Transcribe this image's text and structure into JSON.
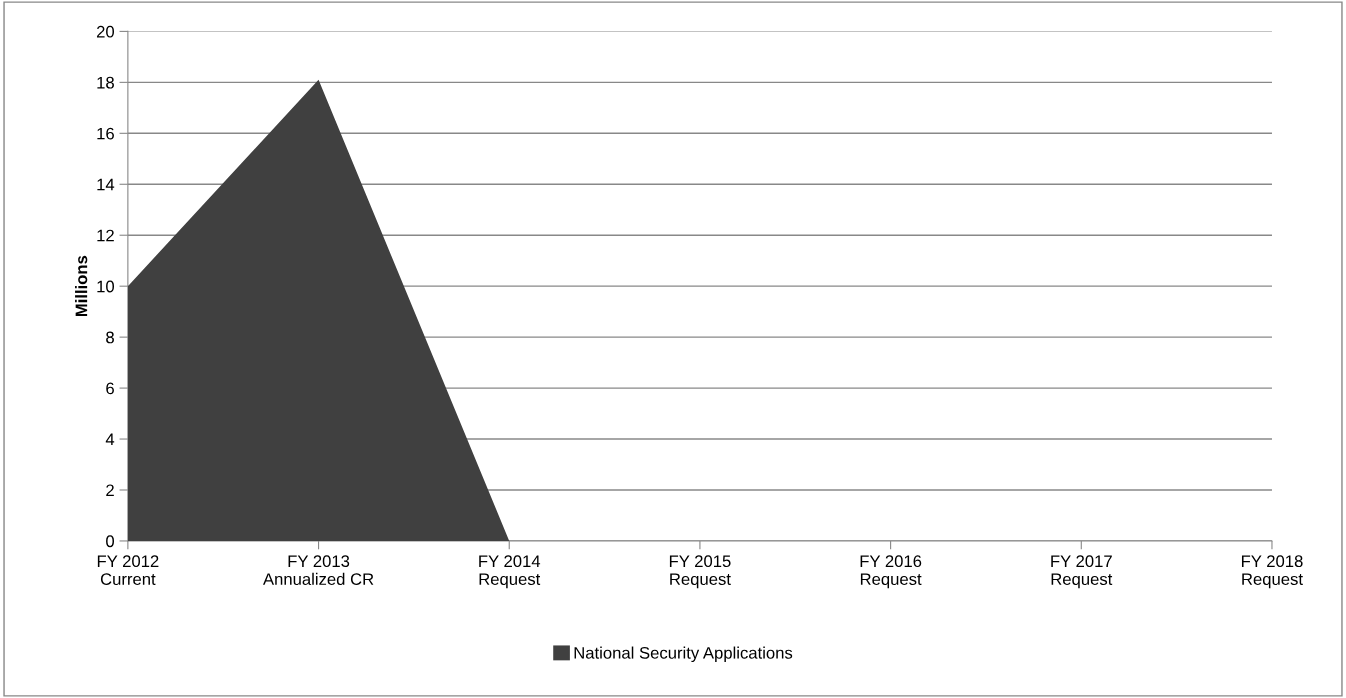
{
  "chart_data": {
    "type": "area",
    "ylabel": "Millions",
    "categories": [
      "FY 2012\nCurrent",
      "FY 2013\nAnnualized CR",
      "FY 2014\nRequest",
      "FY 2015\nRequest",
      "FY 2016\nRequest",
      "FY 2017\nRequest",
      "FY 2018\nRequest"
    ],
    "series": [
      {
        "name": "National Security Applications",
        "color": "#404040",
        "values": [
          10,
          18.1,
          0,
          0,
          0,
          0,
          0
        ]
      }
    ],
    "ylim": [
      0,
      20
    ],
    "yticks": [
      0,
      2,
      4,
      6,
      8,
      10,
      12,
      14,
      16,
      18,
      20
    ],
    "grid": "y",
    "legend": "bottom"
  }
}
